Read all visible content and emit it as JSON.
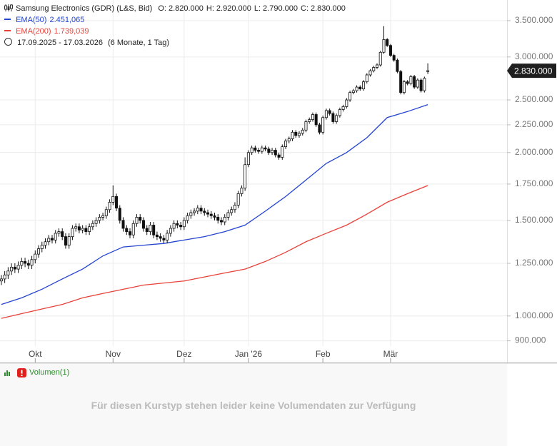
{
  "chart_data": {
    "type": "candlestick",
    "title": "Samsung Electronics (GDR) (L&S, Bid)",
    "ohlc": [
      {
        "key": "O:",
        "value": "2.820.000"
      },
      {
        "key": "H:",
        "value": "2.920.000"
      },
      {
        "key": "L:",
        "value": "2.790.000"
      },
      {
        "key": "C:",
        "value": "2.830.000"
      }
    ],
    "period": {
      "range": "17.09.2025 - 17.03.2026",
      "span": "(6 Monate, 1 Tag)"
    },
    "last_label": "2.830.000",
    "log_scale": true,
    "grid": true,
    "xlim": [
      -0.4,
      149.4
    ],
    "ylim": [
      880000,
      3820000
    ],
    "yticks": [
      {
        "value": 900000,
        "label": "900.000"
      },
      {
        "value": 1000000,
        "label": "1.000.000"
      },
      {
        "value": 1250000,
        "label": "1.250.000"
      },
      {
        "value": 1500000,
        "label": "1.500.000"
      },
      {
        "value": 1750000,
        "label": "1.750.000"
      },
      {
        "value": 2000000,
        "label": "2.000.000"
      },
      {
        "value": 2250000,
        "label": "2.250.000"
      },
      {
        "value": 2500000,
        "label": "2.500.000"
      },
      {
        "value": 3000000,
        "label": "3.000.000"
      },
      {
        "value": 3500000,
        "label": "3.500.000"
      }
    ],
    "xticks": [
      {
        "value": 10,
        "label": "Okt"
      },
      {
        "value": 33,
        "label": "Nov"
      },
      {
        "value": 54,
        "label": "Dez"
      },
      {
        "value": 73,
        "label": "Jan '26"
      },
      {
        "value": 95,
        "label": "Feb"
      },
      {
        "value": 115,
        "label": "Mär"
      }
    ],
    "open": [
      1160000,
      1170000,
      1190000,
      1210000,
      1230000,
      1220000,
      1240000,
      1260000,
      1250000,
      1240000,
      1270000,
      1300000,
      1330000,
      1350000,
      1370000,
      1390000,
      1380000,
      1420000,
      1430000,
      1400000,
      1350000,
      1400000,
      1450000,
      1460000,
      1440000,
      1450000,
      1430000,
      1460000,
      1480000,
      1500000,
      1520000,
      1530000,
      1570000,
      1620000,
      1660000,
      1580000,
      1500000,
      1450000,
      1430000,
      1410000,
      1480000,
      1520000,
      1500000,
      1450000,
      1430000,
      1470000,
      1410000,
      1400000,
      1390000,
      1380000,
      1420000,
      1450000,
      1480000,
      1470000,
      1460000,
      1500000,
      1530000,
      1550000,
      1560000,
      1580000,
      1560000,
      1550000,
      1540000,
      1530000,
      1520000,
      1500000,
      1490000,
      1520000,
      1550000,
      1570000,
      1600000,
      1680000,
      1720000,
      1900000,
      2000000,
      2040000,
      2020000,
      2010000,
      2040000,
      2030000,
      2000000,
      2020000,
      1980000,
      1960000,
      2050000,
      2100000,
      2120000,
      2180000,
      2150000,
      2170000,
      2200000,
      2280000,
      2300000,
      2350000,
      2250000,
      2180000,
      2320000,
      2390000,
      2360000,
      2280000,
      2340000,
      2400000,
      2430000,
      2500000,
      2580000,
      2600000,
      2640000,
      2620000,
      2700000,
      2780000,
      2830000,
      2870000,
      2900000,
      3060000,
      3230000,
      3150000,
      3020000,
      2960000,
      2820000,
      2580000,
      2700000,
      2680000,
      2760000,
      2640000,
      2720000,
      2600000,
      2820000
    ],
    "high": [
      1190000,
      1210000,
      1230000,
      1250000,
      1250000,
      1260000,
      1280000,
      1280000,
      1270000,
      1290000,
      1320000,
      1350000,
      1370000,
      1390000,
      1410000,
      1410000,
      1440000,
      1450000,
      1450000,
      1420000,
      1420000,
      1470000,
      1480000,
      1480000,
      1470000,
      1470000,
      1480000,
      1500000,
      1520000,
      1540000,
      1550000,
      1590000,
      1640000,
      1740000,
      1680000,
      1600000,
      1520000,
      1470000,
      1450000,
      1500000,
      1540000,
      1540000,
      1520000,
      1470000,
      1490000,
      1490000,
      1430000,
      1420000,
      1410000,
      1440000,
      1470000,
      1500000,
      1500000,
      1490000,
      1520000,
      1550000,
      1570000,
      1580000,
      1600000,
      1600000,
      1580000,
      1570000,
      1560000,
      1550000,
      1540000,
      1520000,
      1540000,
      1570000,
      1590000,
      1620000,
      1700000,
      1740000,
      1960000,
      2020000,
      2060000,
      2060000,
      2040000,
      2060000,
      2060000,
      2050000,
      2040000,
      2040000,
      2000000,
      2070000,
      2120000,
      2140000,
      2200000,
      2200000,
      2190000,
      2220000,
      2300000,
      2320000,
      2370000,
      2370000,
      2270000,
      2340000,
      2410000,
      2410000,
      2380000,
      2360000,
      2420000,
      2450000,
      2520000,
      2600000,
      2620000,
      2660000,
      2660000,
      2720000,
      2800000,
      2850000,
      2890000,
      2920000,
      3080000,
      3420000,
      3250000,
      3170000,
      3040000,
      2980000,
      2840000,
      2720000,
      2720000,
      2780000,
      2780000,
      2740000,
      2740000,
      2760000,
      2920000
    ],
    "low": [
      1140000,
      1150000,
      1170000,
      1190000,
      1200000,
      1200000,
      1220000,
      1230000,
      1220000,
      1220000,
      1250000,
      1280000,
      1310000,
      1330000,
      1350000,
      1360000,
      1360000,
      1400000,
      1380000,
      1330000,
      1330000,
      1380000,
      1430000,
      1420000,
      1420000,
      1410000,
      1410000,
      1440000,
      1460000,
      1480000,
      1500000,
      1510000,
      1550000,
      1600000,
      1560000,
      1480000,
      1430000,
      1410000,
      1390000,
      1390000,
      1460000,
      1480000,
      1430000,
      1410000,
      1410000,
      1390000,
      1380000,
      1370000,
      1360000,
      1360000,
      1400000,
      1430000,
      1450000,
      1440000,
      1440000,
      1480000,
      1510000,
      1530000,
      1540000,
      1540000,
      1530000,
      1520000,
      1510000,
      1500000,
      1480000,
      1470000,
      1470000,
      1500000,
      1530000,
      1550000,
      1580000,
      1660000,
      1700000,
      1880000,
      1980000,
      2000000,
      1990000,
      1990000,
      2010000,
      1980000,
      1980000,
      1960000,
      1940000,
      1940000,
      2030000,
      2080000,
      2100000,
      2130000,
      2130000,
      2150000,
      2180000,
      2260000,
      2280000,
      2230000,
      2160000,
      2160000,
      2300000,
      2340000,
      2260000,
      2260000,
      2320000,
      2380000,
      2410000,
      2480000,
      2560000,
      2580000,
      2600000,
      2600000,
      2680000,
      2760000,
      2810000,
      2850000,
      2880000,
      3040000,
      3130000,
      3000000,
      2940000,
      2800000,
      2560000,
      2560000,
      2660000,
      2660000,
      2620000,
      2620000,
      2580000,
      2580000,
      2790000
    ],
    "close": [
      1170000,
      1190000,
      1210000,
      1230000,
      1220000,
      1240000,
      1260000,
      1250000,
      1240000,
      1270000,
      1300000,
      1330000,
      1350000,
      1370000,
      1390000,
      1380000,
      1420000,
      1430000,
      1400000,
      1350000,
      1400000,
      1450000,
      1460000,
      1440000,
      1450000,
      1430000,
      1460000,
      1480000,
      1500000,
      1520000,
      1530000,
      1570000,
      1620000,
      1660000,
      1580000,
      1500000,
      1450000,
      1430000,
      1410000,
      1480000,
      1520000,
      1500000,
      1450000,
      1430000,
      1470000,
      1410000,
      1400000,
      1390000,
      1380000,
      1420000,
      1450000,
      1480000,
      1470000,
      1460000,
      1500000,
      1530000,
      1550000,
      1560000,
      1580000,
      1560000,
      1550000,
      1540000,
      1530000,
      1520000,
      1500000,
      1490000,
      1520000,
      1550000,
      1570000,
      1600000,
      1680000,
      1720000,
      1900000,
      2000000,
      2040000,
      2020000,
      2010000,
      2040000,
      2030000,
      2000000,
      2020000,
      1980000,
      1960000,
      2050000,
      2100000,
      2120000,
      2180000,
      2150000,
      2170000,
      2200000,
      2280000,
      2300000,
      2350000,
      2250000,
      2180000,
      2320000,
      2390000,
      2360000,
      2280000,
      2340000,
      2400000,
      2430000,
      2500000,
      2580000,
      2600000,
      2640000,
      2620000,
      2700000,
      2780000,
      2830000,
      2870000,
      2900000,
      3060000,
      3230000,
      3150000,
      3020000,
      2960000,
      2820000,
      2580000,
      2700000,
      2680000,
      2760000,
      2640000,
      2720000,
      2600000,
      2740000,
      2830000
    ],
    "series": [
      {
        "name": "EMA(50)",
        "color": "#2343d0",
        "last_label": "2.451,065",
        "x": [
          0,
          6,
          12,
          18,
          24,
          30,
          36,
          42,
          48,
          54,
          60,
          66,
          72,
          78,
          84,
          90,
          96,
          102,
          108,
          114,
          120,
          126
        ],
        "values": [
          1050000,
          1080000,
          1120000,
          1170000,
          1220000,
          1290000,
          1340000,
          1350000,
          1360000,
          1380000,
          1400000,
          1430000,
          1470000,
          1560000,
          1660000,
          1780000,
          1910000,
          2000000,
          2130000,
          2320000,
          2380000,
          2451000
        ]
      },
      {
        "name": "EMA(200)",
        "color": "#e8413a",
        "last_label": "1.739,039",
        "x": [
          0,
          6,
          12,
          18,
          24,
          30,
          36,
          42,
          48,
          54,
          60,
          66,
          72,
          78,
          84,
          90,
          96,
          102,
          108,
          114,
          120,
          126
        ],
        "values": [
          990000,
          1010000,
          1030000,
          1050000,
          1080000,
          1100000,
          1120000,
          1140000,
          1150000,
          1160000,
          1180000,
          1200000,
          1220000,
          1260000,
          1310000,
          1370000,
          1420000,
          1470000,
          1540000,
          1620000,
          1680000,
          1739000
        ]
      }
    ],
    "volume": {
      "title": "Volumen(1)",
      "message": "Für diesen Kurstyp stehen leider keine Volumendaten zur Verfügung"
    }
  }
}
